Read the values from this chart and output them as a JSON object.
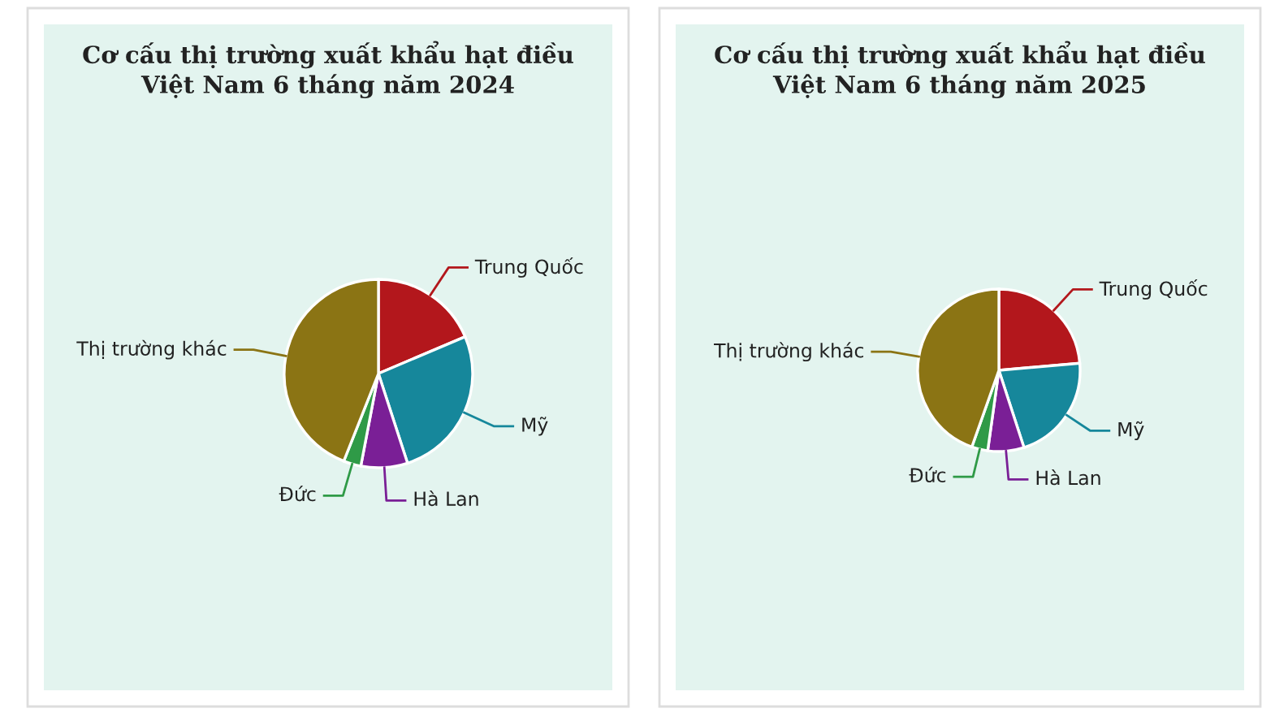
{
  "chart_data": [
    {
      "type": "pie",
      "title": "Cơ cấu thị trường xuất khẩu hạt điều Việt Nam 6 tháng năm 2024",
      "categories": [
        "Trung Quốc",
        "Mỹ",
        "Hà Lan",
        "Đức",
        "Thị trường khác"
      ],
      "values": [
        18.6,
        26.4,
        8,
        3,
        44
      ],
      "colors": [
        "#b3171c",
        "#16879b",
        "#7a1f96",
        "#2f9a47",
        "#8b7414"
      ]
    },
    {
      "type": "pie",
      "title": "Cơ cấu thị trường xuất khẩu hạt điều Việt Nam 6 tháng năm 2025",
      "categories": [
        "Trung Quốc",
        "Mỹ",
        "Hà Lan",
        "Đức",
        "Thị trường khác"
      ],
      "values": [
        23.6,
        21.4,
        7.2,
        3.2,
        44.6
      ],
      "colors": [
        "#b3171c",
        "#16879b",
        "#7a1f96",
        "#2f9a47",
        "#8b7414"
      ]
    }
  ]
}
